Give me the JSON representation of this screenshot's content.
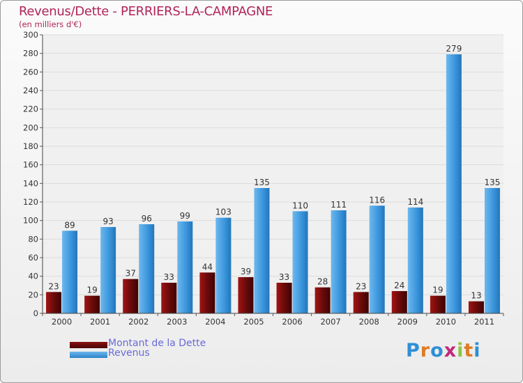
{
  "chart_data": {
    "type": "bar",
    "title": "Revenus/Dette - PERRIERS-LA-CAMPAGNE",
    "subtitle": "(en milliers d'€)",
    "xlabel": "",
    "ylabel": "",
    "ylim": [
      0,
      300
    ],
    "yticks": [
      0,
      20,
      40,
      60,
      80,
      100,
      120,
      140,
      160,
      180,
      200,
      220,
      240,
      260,
      280,
      300
    ],
    "grid": true,
    "categories": [
      "2000",
      "2001",
      "2002",
      "2003",
      "2004",
      "2005",
      "2006",
      "2007",
      "2008",
      "2009",
      "2010",
      "2011"
    ],
    "series": [
      {
        "name": "Montant de la Dette",
        "color": "#6b0a0a",
        "values": [
          23,
          19,
          37,
          33,
          44,
          39,
          33,
          28,
          23,
          24,
          19,
          13
        ]
      },
      {
        "name": "Revenus",
        "color": "#3d97dd",
        "values": [
          89,
          93,
          96,
          99,
          103,
          135,
          110,
          111,
          116,
          114,
          279,
          135
        ]
      }
    ],
    "legend_position": "bottom-left"
  },
  "branding": {
    "logo_text": "Proxiti",
    "logo_colors": [
      "#2e8fd6",
      "#e07b22",
      "#2e8fd6",
      "#c0287a",
      "#8cc63f",
      "#e07b22",
      "#2e8fd6"
    ]
  }
}
